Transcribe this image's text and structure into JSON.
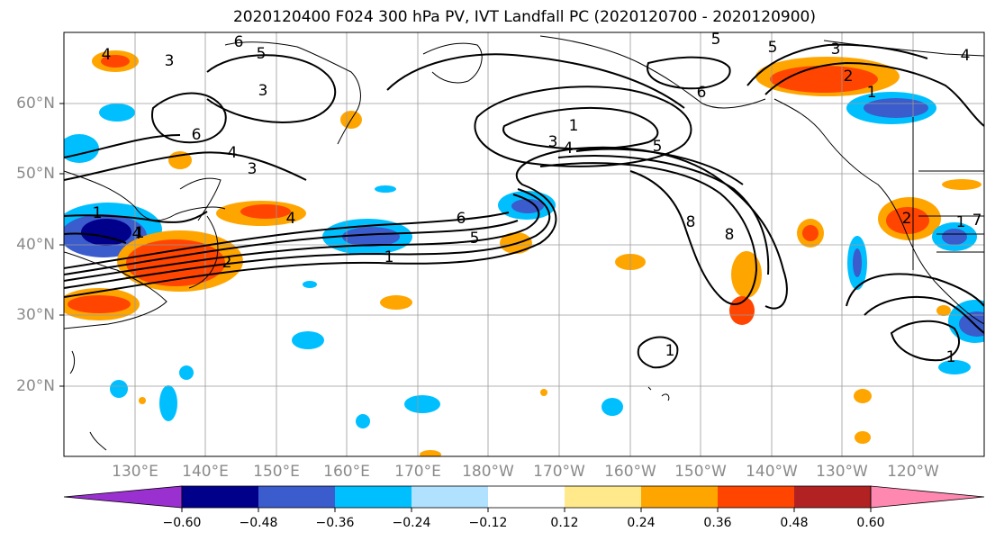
{
  "title": "2020120400 F024 300 hPa PV, IVT Landfall PC (2020120700 - 2020120900)",
  "lat_labels": [
    "60°N",
    "50°N",
    "40°N",
    "30°N",
    "20°N"
  ],
  "lon_labels": [
    "130°E",
    "140°E",
    "150°E",
    "160°E",
    "170°E",
    "180°W",
    "170°W",
    "160°W",
    "150°W",
    "140°W",
    "130°W",
    "120°W"
  ],
  "colorbar": {
    "tick_labels": [
      "−0.60",
      "−0.48",
      "−0.36",
      "−0.24",
      "−0.12",
      "0.12",
      "0.24",
      "0.36",
      "0.48",
      "0.60"
    ],
    "colors": [
      "#9b30d0",
      "#00008b",
      "#3a5ccc",
      "#00bfff",
      "#b0e2ff",
      "#ffffff",
      "#ffe98a",
      "#ffa500",
      "#ff4500",
      "#b22222",
      "#ff88b0"
    ]
  },
  "contour_labels": [
    "4",
    "3",
    "5",
    "6",
    "5",
    "3",
    "6",
    "1",
    "3",
    "4",
    "5",
    "1",
    "2",
    "3",
    "4",
    "1",
    "6",
    "4",
    "3",
    "5",
    "1",
    "6",
    "5",
    "1",
    "8",
    "8",
    "1",
    "2",
    "1",
    "1",
    "7",
    "4",
    "2",
    "4"
  ]
}
